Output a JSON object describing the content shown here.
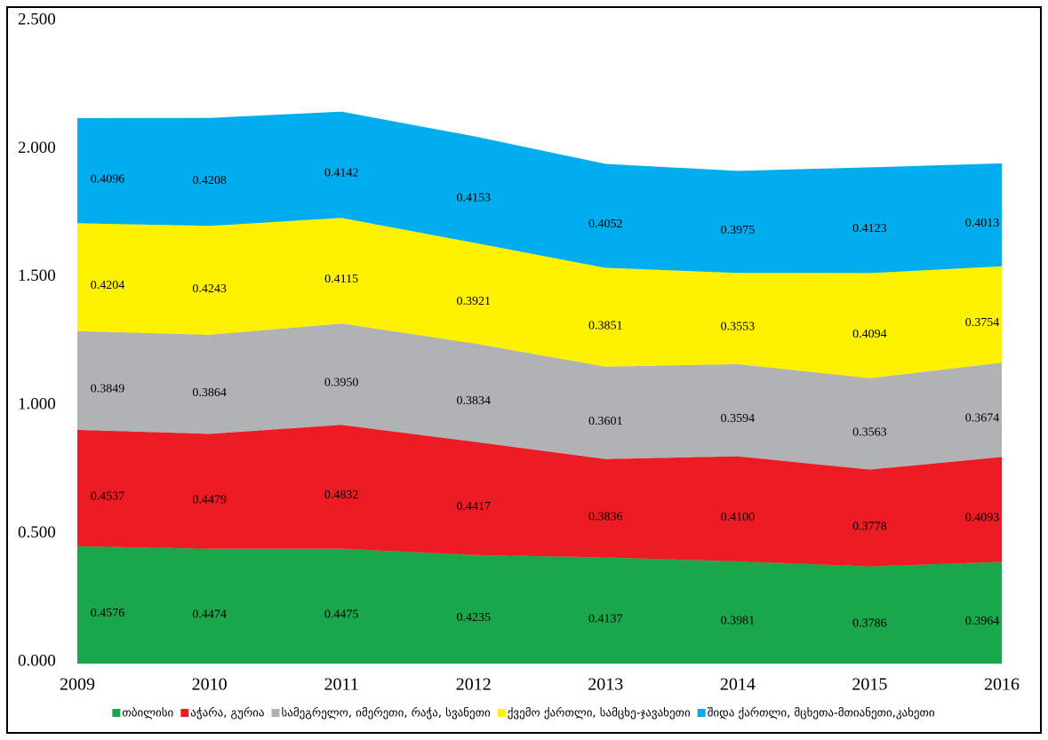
{
  "chart_data": {
    "type": "stacked_area",
    "categories": [
      "2009",
      "2010",
      "2011",
      "2012",
      "2013",
      "2014",
      "2015",
      "2016"
    ],
    "series": [
      {
        "name": "თბილისი",
        "color": "#1aa64a",
        "values": [
          0.4576,
          0.4474,
          0.4475,
          0.4235,
          0.4137,
          0.3981,
          0.3786,
          0.3964
        ],
        "value_labels": [
          "0.4576",
          "0.4474",
          "0.4475",
          "0.4235",
          "0.4137",
          "0.3981",
          "0.3786",
          "0.3964"
        ]
      },
      {
        "name": "აჭარა, გურია",
        "color": "#ed1c24",
        "values": [
          0.4537,
          0.4479,
          0.4832,
          0.4417,
          0.3836,
          0.41,
          0.3778,
          0.4093
        ],
        "value_labels": [
          "0.4537",
          "0.4479",
          "0.4832",
          "0.4417",
          "0.3836",
          "0.4100",
          "0.3778",
          "0.4093"
        ]
      },
      {
        "name": "სამეგრელო, იმერეთი, რაჭა, სვანეთი",
        "color": "#b1b2b4",
        "values": [
          0.3849,
          0.3864,
          0.395,
          0.3834,
          0.3601,
          0.3594,
          0.3563,
          0.3674
        ],
        "value_labels": [
          "0.3849",
          "0.3864",
          "0.3950",
          "0.3834",
          "0.3601",
          "0.3594",
          "0.3563",
          "0.3674"
        ]
      },
      {
        "name": "ქვემო ქართლი, სამცხე-ჯავახეთი",
        "color": "#fff200",
        "values": [
          0.4204,
          0.4243,
          0.4115,
          0.3921,
          0.3851,
          0.3553,
          0.4094,
          0.3754
        ],
        "value_labels": [
          "0.4204",
          "0.4243",
          "0.4115",
          "0.3921",
          "0.3851",
          "0.3553",
          "0.4094",
          "0.3754"
        ]
      },
      {
        "name": "შიდა ქართლი, მცხეთა-მთიანეთი,კახეთი",
        "color": "#00aeef",
        "values": [
          0.4096,
          0.4208,
          0.4142,
          0.4153,
          0.4052,
          0.3975,
          0.4123,
          0.4013
        ],
        "value_labels": [
          "0.4096",
          "0.4208",
          "0.4142",
          "0.4153",
          "0.4052",
          "0.3975",
          "0.4123",
          "0.4013"
        ]
      }
    ],
    "ylim": [
      0,
      2.5
    ],
    "yticks": [
      {
        "value": 0,
        "label": "0.000"
      },
      {
        "value": 0.5,
        "label": "0.500"
      },
      {
        "value": 1,
        "label": "1.000"
      },
      {
        "value": 1.5,
        "label": "1.500"
      },
      {
        "value": 2,
        "label": "2.000"
      },
      {
        "value": 2.5,
        "label": "2.500"
      }
    ],
    "legend": "bottom"
  }
}
